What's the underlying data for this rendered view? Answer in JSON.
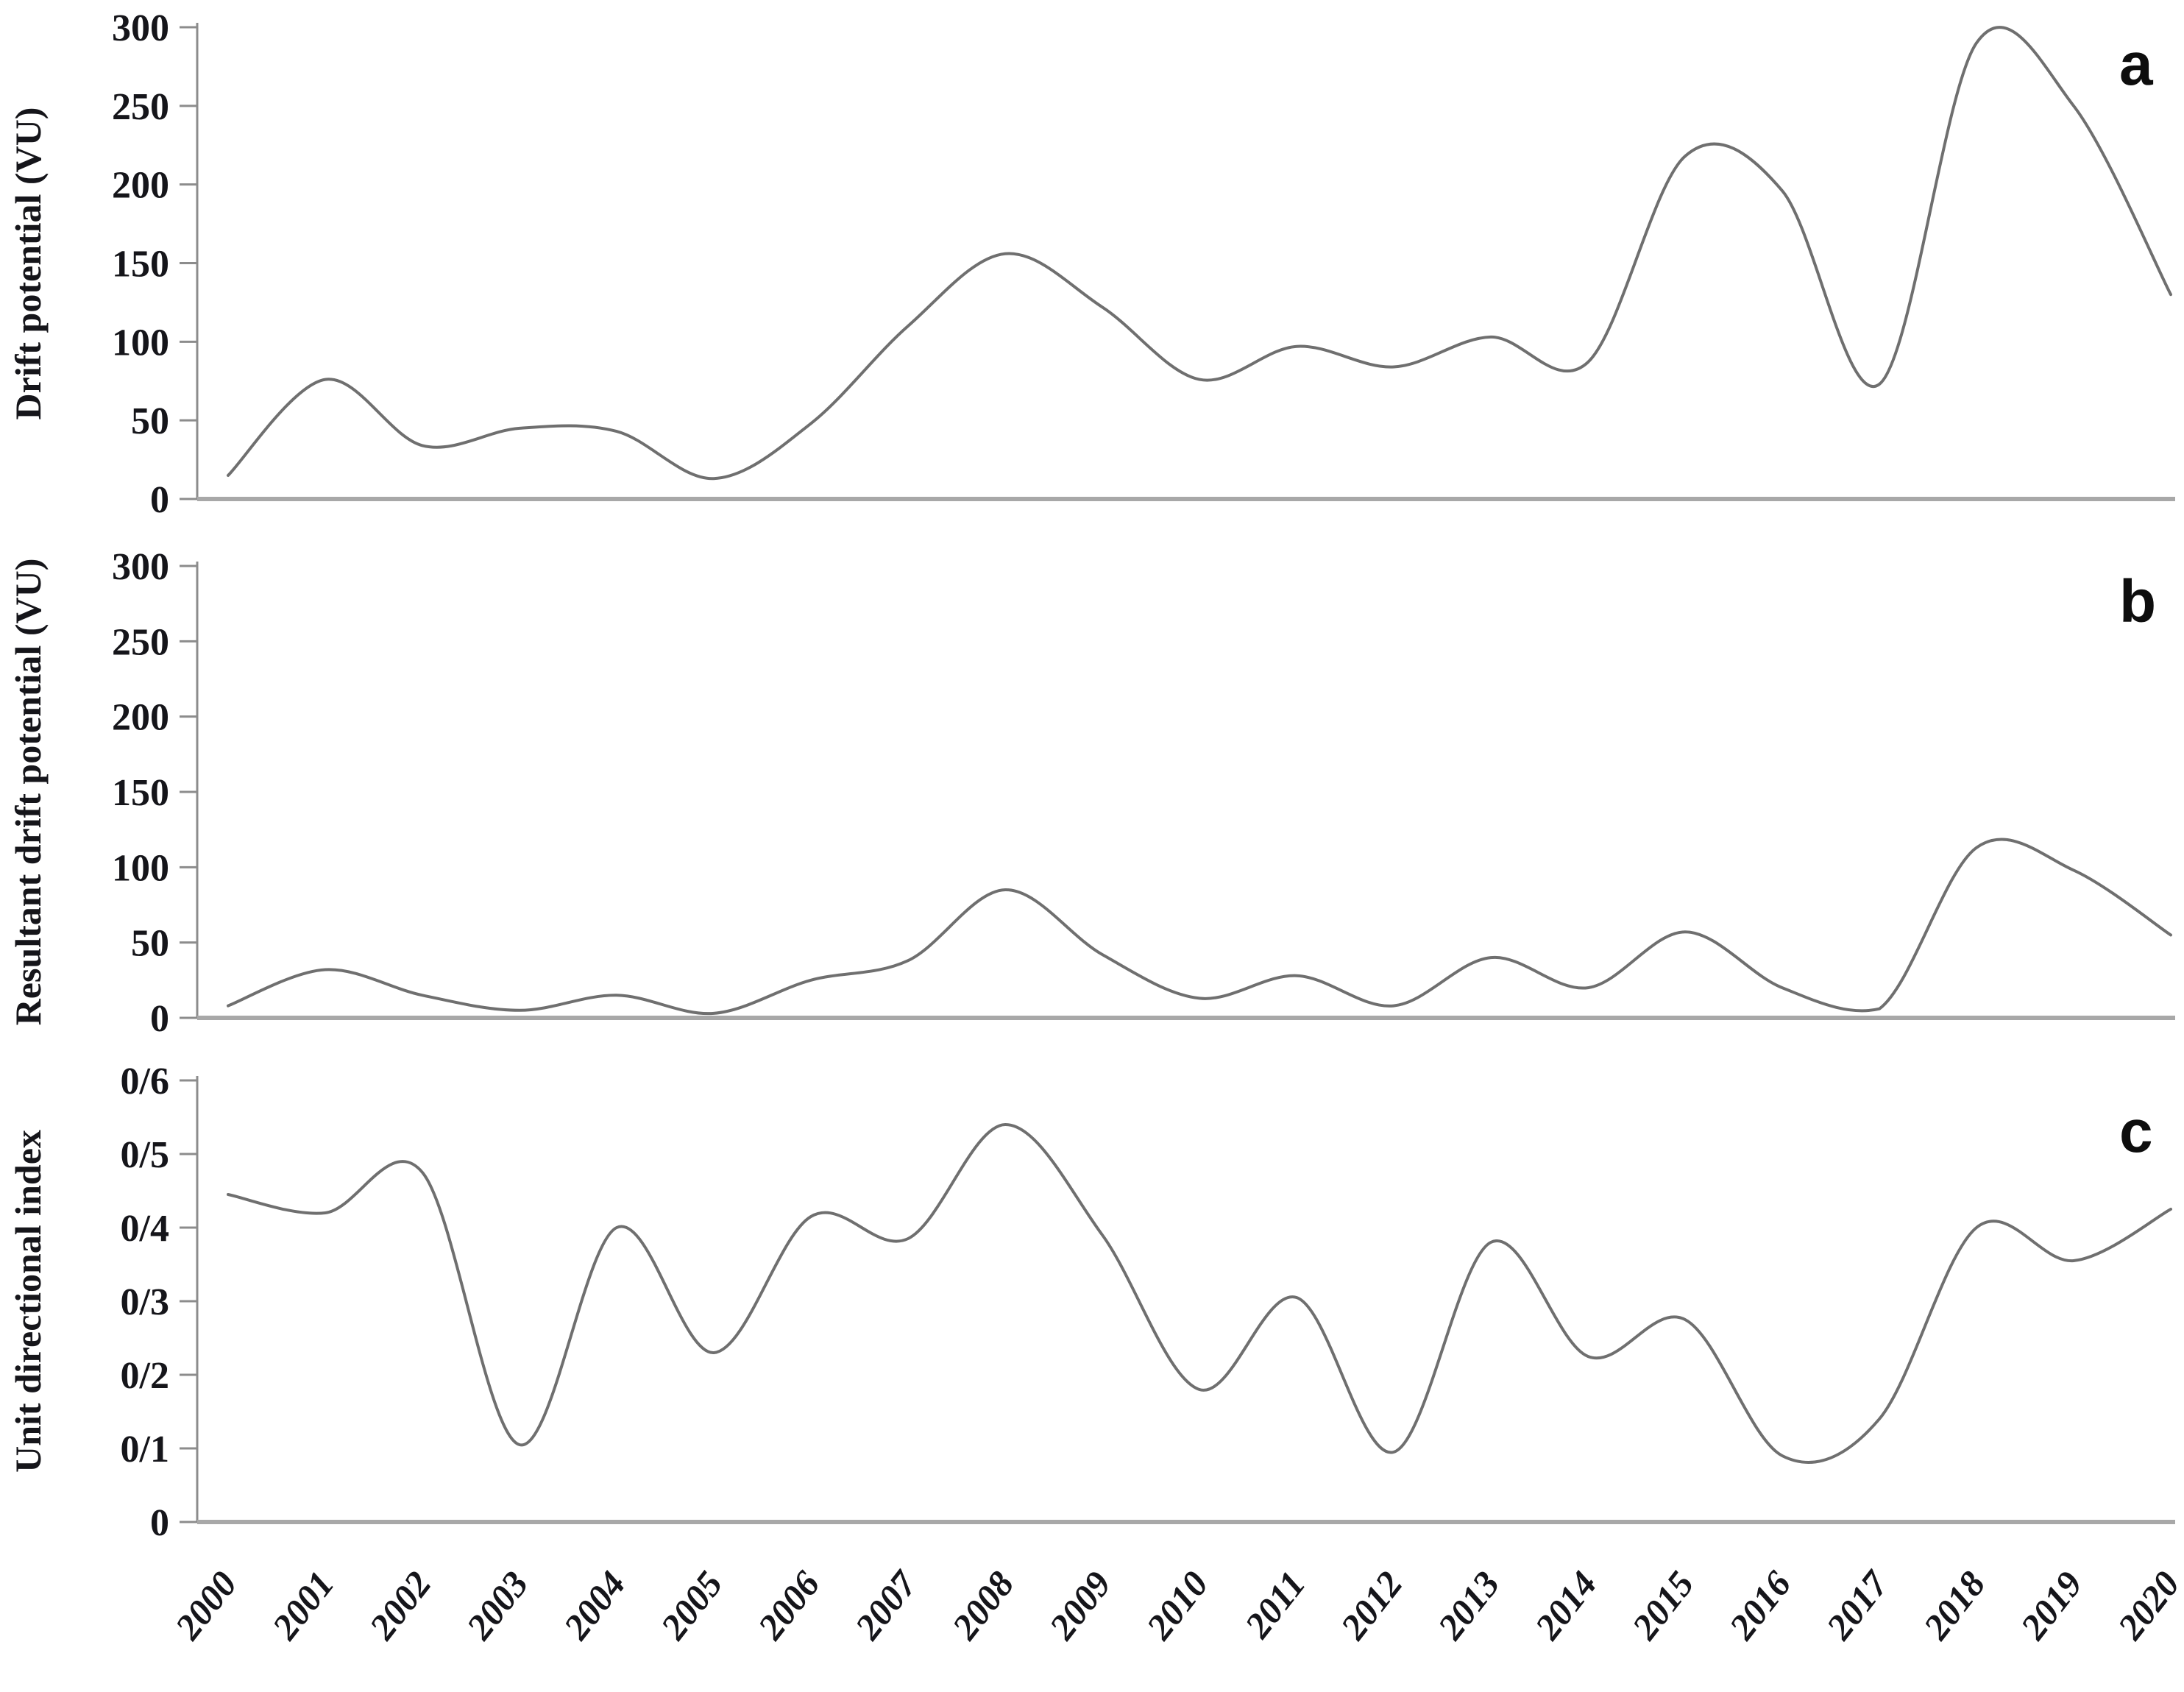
{
  "chart_data": [
    {
      "type": "line",
      "panel_label": "a",
      "ylabel": "Drift potential (VU)",
      "xlabel": "",
      "line_style": "smooth",
      "grid": false,
      "legend": "none",
      "x": [
        2000,
        2001,
        2002,
        2003,
        2004,
        2005,
        2006,
        2007,
        2008,
        2009,
        2010,
        2011,
        2012,
        2013,
        2014,
        2015,
        2016,
        2017,
        2018,
        2019,
        2020
      ],
      "series": [
        {
          "name": "Drift potential (VU)",
          "values": [
            15,
            76,
            34,
            45,
            43,
            13,
            48,
            110,
            156,
            122,
            76,
            97,
            84,
            103,
            87,
            218,
            196,
            73,
            290,
            250,
            130
          ]
        }
      ],
      "ylim": [
        0,
        300
      ],
      "yticks": [
        0,
        50,
        100,
        150,
        200,
        250,
        300
      ],
      "ytick_labels": [
        "0",
        "50",
        "100",
        "150",
        "200",
        "250",
        "300"
      ]
    },
    {
      "type": "line",
      "panel_label": "b",
      "ylabel": "Resultant drift potential (VU)",
      "xlabel": "",
      "line_style": "smooth",
      "grid": false,
      "legend": "none",
      "x": [
        2000,
        2001,
        2002,
        2003,
        2004,
        2005,
        2006,
        2007,
        2008,
        2009,
        2010,
        2011,
        2012,
        2013,
        2014,
        2015,
        2016,
        2017,
        2018,
        2019,
        2020
      ],
      "series": [
        {
          "name": "Resultant drift potential (VU)",
          "values": [
            8,
            32,
            15,
            5,
            15,
            3,
            25,
            38,
            85,
            42,
            13,
            28,
            8,
            40,
            20,
            57,
            20,
            6,
            113,
            98,
            55
          ]
        }
      ],
      "ylim": [
        0,
        300
      ],
      "yticks": [
        0,
        50,
        100,
        150,
        200,
        250,
        300
      ],
      "ytick_labels": [
        "0",
        "50",
        "100",
        "150",
        "200",
        "250",
        "300"
      ]
    },
    {
      "type": "line",
      "panel_label": "c",
      "ylabel": "Unit directional index",
      "xlabel": "",
      "line_style": "smooth",
      "grid": false,
      "legend": "none",
      "x": [
        2000,
        2001,
        2002,
        2003,
        2004,
        2005,
        2006,
        2007,
        2008,
        2009,
        2010,
        2011,
        2012,
        2013,
        2014,
        2015,
        2016,
        2017,
        2018,
        2019,
        2020
      ],
      "series": [
        {
          "name": "Unit directional index",
          "values": [
            0.445,
            0.42,
            0.475,
            0.105,
            0.4,
            0.23,
            0.415,
            0.385,
            0.54,
            0.39,
            0.18,
            0.305,
            0.095,
            0.38,
            0.225,
            0.275,
            0.09,
            0.14,
            0.4,
            0.355,
            0.425
          ]
        }
      ],
      "ylim": [
        0,
        0.6
      ],
      "yticks": [
        0,
        0.1,
        0.2,
        0.3,
        0.4,
        0.5,
        0.6
      ],
      "ytick_labels": [
        "0",
        "0/1",
        "0/2",
        "0/3",
        "0/4",
        "0/5",
        "0/6"
      ]
    }
  ],
  "x_axis": {
    "labels": [
      "2000",
      "2001",
      "2002",
      "2003",
      "2004",
      "2005",
      "2006",
      "2007",
      "2008",
      "2009",
      "2010",
      "2011",
      "2012",
      "2013",
      "2014",
      "2015",
      "2016",
      "2017",
      "2018",
      "2019",
      "2020"
    ]
  },
  "colors": {
    "curve": "#6f6f6f",
    "axis": "#8c8c8c",
    "baseline": "#a8a8a8",
    "text": "#15151a"
  }
}
